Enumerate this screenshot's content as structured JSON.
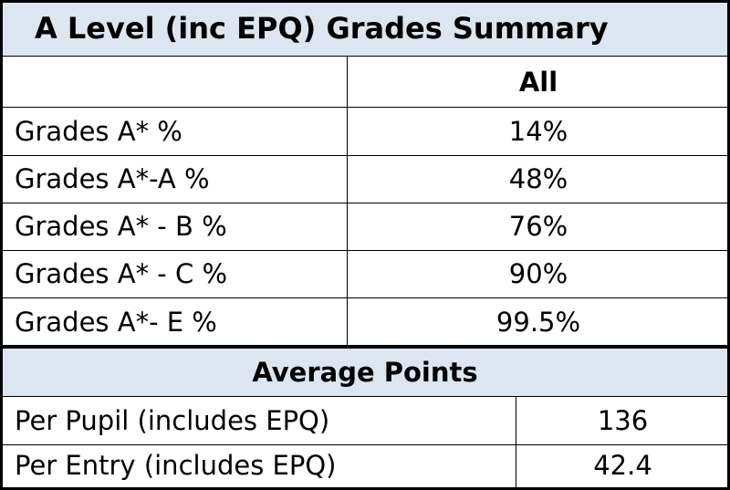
{
  "header": {
    "title": "A Level (inc EPQ) Grades Summary",
    "column": "All"
  },
  "grades": {
    "rows": [
      [
        "Grades A* %",
        "14%"
      ],
      [
        "Grades A*-A %",
        "48%"
      ],
      [
        "Grades A* - B %",
        "76%"
      ],
      [
        "Grades A* - C %",
        "90%"
      ],
      [
        "Grades A*- E %",
        "99.5%"
      ]
    ]
  },
  "points": {
    "title": "Average Points",
    "rows": [
      [
        "Per Pupil (includes EPQ)",
        "136"
      ],
      [
        "Per Entry (includes EPQ)",
        "42.4"
      ]
    ]
  }
}
